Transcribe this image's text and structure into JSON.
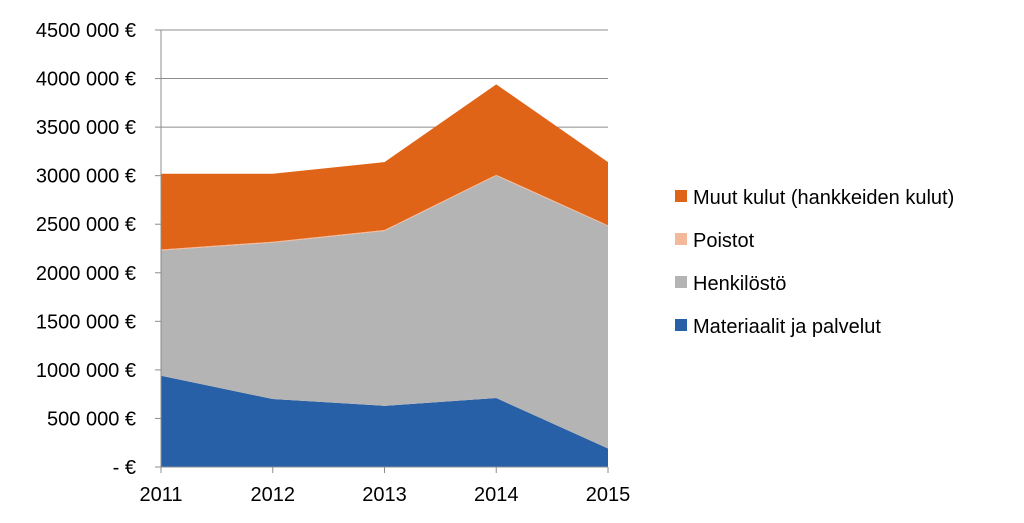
{
  "chart_data": {
    "type": "area",
    "stacked": true,
    "x": [
      "2011",
      "2012",
      "2013",
      "2014",
      "2015"
    ],
    "ylim": [
      0,
      4500000
    ],
    "yticks": [
      {
        "value": 0,
        "label": "-   €"
      },
      {
        "value": 500000,
        "label": "500 000 €"
      },
      {
        "value": 1000000,
        "label": "1000 000 €"
      },
      {
        "value": 1500000,
        "label": "1500 000 €"
      },
      {
        "value": 2000000,
        "label": "2000 000 €"
      },
      {
        "value": 2500000,
        "label": "2500 000 €"
      },
      {
        "value": 3000000,
        "label": "3000 000 €"
      },
      {
        "value": 3500000,
        "label": "3500 000 €"
      },
      {
        "value": 4000000,
        "label": "4000 000 €"
      },
      {
        "value": 4500000,
        "label": "4500 000 €"
      }
    ],
    "grid": "horizontal",
    "legend_position": "right",
    "series": [
      {
        "name": "Materiaalit ja palvelut",
        "color": "#2860A8",
        "values": [
          940000,
          700000,
          630000,
          710000,
          190000
        ]
      },
      {
        "name": "Henkilöstö",
        "color": "#B4B4B4",
        "values": [
          1290000,
          1610000,
          1800000,
          2290000,
          2290000
        ]
      },
      {
        "name": "Poistot",
        "color": "#F4B99A",
        "values": [
          10000,
          10000,
          10000,
          10000,
          10000
        ]
      },
      {
        "name": "Muut kulut (hankkeiden kulut)",
        "color": "#E06418",
        "values": [
          780000,
          700000,
          700000,
          930000,
          650000
        ]
      }
    ]
  }
}
